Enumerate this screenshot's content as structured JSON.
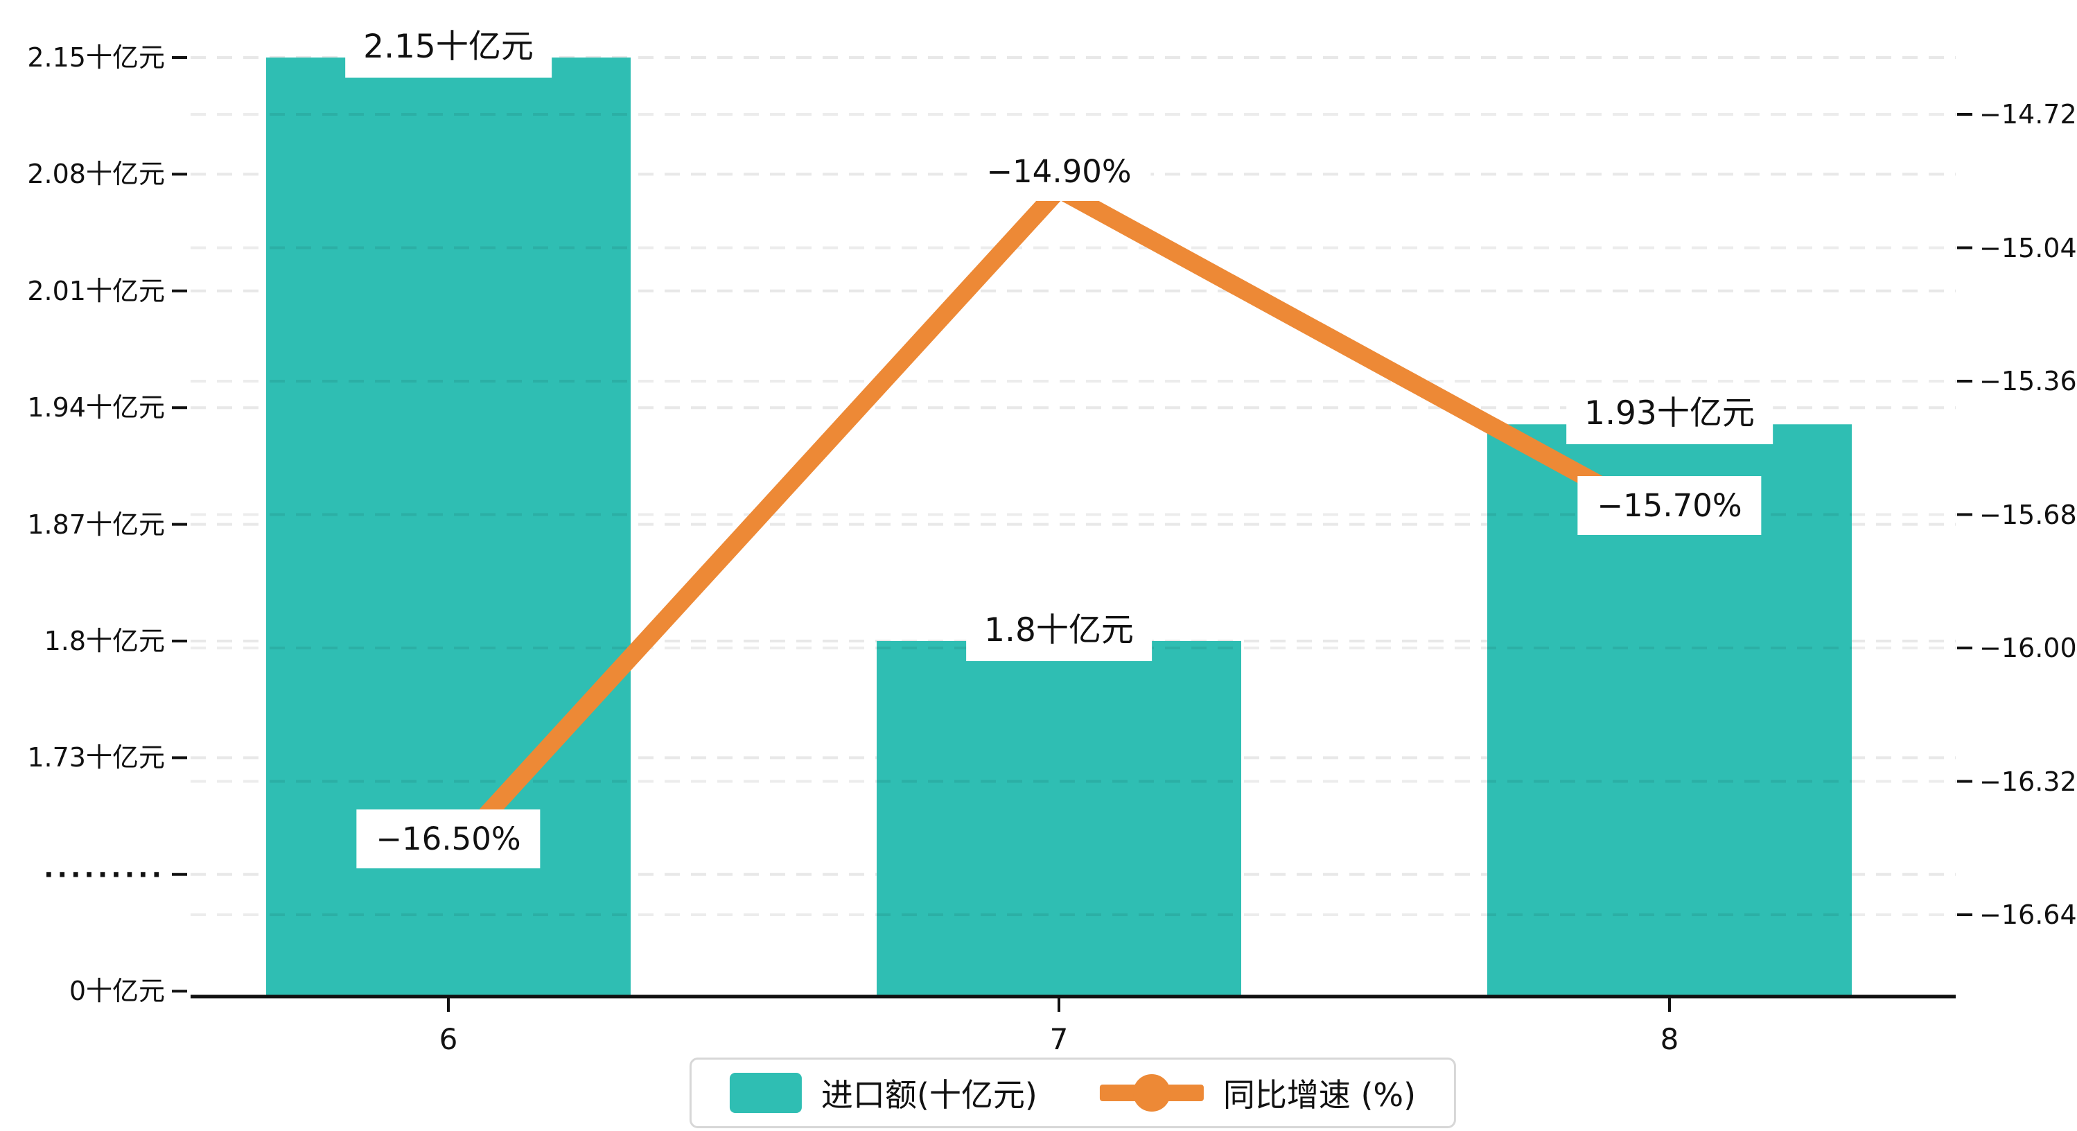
{
  "chart_data": {
    "type": "bar",
    "combo": "bar-line-dual-axis",
    "categories": [
      "6",
      "7",
      "8"
    ],
    "series": [
      {
        "name": "进口额(十亿元)",
        "type": "bar",
        "axis": "left",
        "color": "#2fbeb3",
        "values": [
          2.15,
          1.8,
          1.93
        ],
        "labels": [
          "2.15十亿元",
          "1.8十亿元",
          "1.93十亿元"
        ]
      },
      {
        "name": "同比增速 (%)",
        "type": "line",
        "axis": "right",
        "color": "#ed8936",
        "values": [
          -16.5,
          -14.9,
          -15.7
        ],
        "labels": [
          "−16.50%",
          "−14.90%",
          "−15.70%"
        ]
      }
    ],
    "left_axis": {
      "tick_labels": [
        "2.15十亿元",
        "2.08十亿元",
        "2.01十亿元",
        "1.94十亿元",
        "1.87十亿元",
        "1.8十亿元",
        "1.73十亿元",
        "·········",
        "0十亿元"
      ],
      "tick_values": [
        2.15,
        2.08,
        2.01,
        1.94,
        1.87,
        1.8,
        1.73,
        null,
        0
      ],
      "break_label": "·········",
      "unit": "十亿元",
      "note": "axis break between 1.73 and 0"
    },
    "right_axis": {
      "tick_labels": [
        "−14.72",
        "−15.04",
        "−15.36",
        "−15.68",
        "−16.00",
        "−16.32",
        "−16.64"
      ],
      "tick_values": [
        -14.72,
        -15.04,
        -15.36,
        -15.68,
        -16.0,
        -16.32,
        -16.64
      ]
    },
    "grid": "dashed horizontal lines for both axes",
    "legend_position": "bottom-center"
  },
  "legend": {
    "items": [
      {
        "label": "进口额(十亿元)",
        "marker": "teal-rounded-rect"
      },
      {
        "label": "同比增速 (%)",
        "marker": "orange-line-with-dot"
      }
    ]
  },
  "colors": {
    "bar": "#2fbeb3",
    "line": "#ed8936",
    "axis": "#111111",
    "grid_left": "#e8e8e8",
    "grid_right_over_bars": "rgba(0,0,0,0.075)",
    "text": "#111111",
    "label_bg": "#ffffff",
    "legend_border": "#d7d7d7"
  }
}
